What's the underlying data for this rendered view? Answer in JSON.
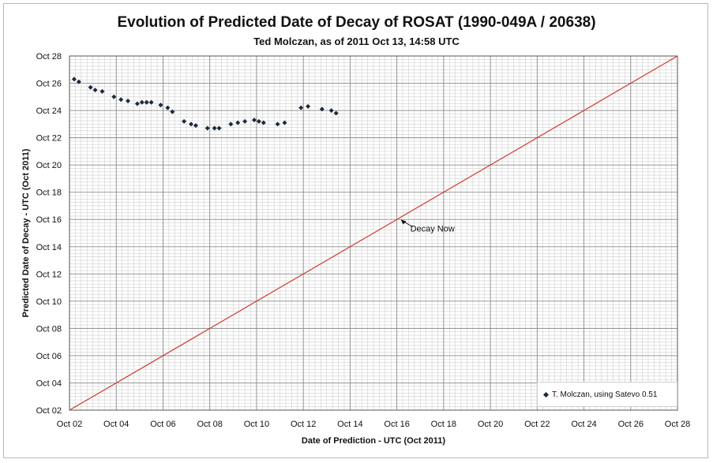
{
  "chart_data": {
    "type": "scatter",
    "title": "Evolution of Predicted Date of Decay of ROSAT (1990-049A / 20638)",
    "subtitle": "Ted Molczan, as of 2011 Oct 13, 14:58 UTC",
    "xlabel": "Date of Prediction - UTC (Oct 2011)",
    "ylabel": "Predicted Date of Decay - UTC (Oct 2011)",
    "xlim": [
      2,
      28
    ],
    "ylim": [
      2,
      28
    ],
    "x_ticks": [
      "Oct 02",
      "Oct 04",
      "Oct 06",
      "Oct 08",
      "Oct 10",
      "Oct 12",
      "Oct 14",
      "Oct 16",
      "Oct 18",
      "Oct 20",
      "Oct 22",
      "Oct 24",
      "Oct 26",
      "Oct 28"
    ],
    "y_ticks": [
      "Oct 02",
      "Oct 04",
      "Oct 06",
      "Oct 08",
      "Oct 10",
      "Oct 12",
      "Oct 14",
      "Oct 16",
      "Oct 18",
      "Oct 20",
      "Oct 22",
      "Oct 24",
      "Oct 26",
      "Oct 28"
    ],
    "grid": true,
    "legend_position": "bottom-right",
    "series": [
      {
        "name": "T. Molczan, using Satevo 0.51",
        "color": "#1c2a3d",
        "marker": "diamond",
        "points": [
          [
            2.2,
            26.3
          ],
          [
            2.4,
            26.1
          ],
          [
            2.9,
            25.7
          ],
          [
            3.1,
            25.5
          ],
          [
            3.4,
            25.4
          ],
          [
            3.9,
            25.0
          ],
          [
            4.2,
            24.8
          ],
          [
            4.5,
            24.7
          ],
          [
            4.9,
            24.5
          ],
          [
            5.1,
            24.6
          ],
          [
            5.3,
            24.6
          ],
          [
            5.5,
            24.6
          ],
          [
            5.9,
            24.4
          ],
          [
            6.2,
            24.2
          ],
          [
            6.4,
            23.9
          ],
          [
            6.9,
            23.2
          ],
          [
            7.2,
            23.0
          ],
          [
            7.4,
            22.9
          ],
          [
            7.9,
            22.7
          ],
          [
            8.2,
            22.7
          ],
          [
            8.4,
            22.7
          ],
          [
            8.9,
            23.0
          ],
          [
            9.2,
            23.1
          ],
          [
            9.5,
            23.2
          ],
          [
            9.9,
            23.3
          ],
          [
            10.1,
            23.2
          ],
          [
            10.3,
            23.1
          ],
          [
            10.9,
            23.0
          ],
          [
            11.2,
            23.1
          ],
          [
            11.9,
            24.2
          ],
          [
            12.2,
            24.3
          ],
          [
            12.8,
            24.1
          ],
          [
            13.2,
            24.0
          ],
          [
            13.4,
            23.8
          ]
        ]
      },
      {
        "name": "Decay Now",
        "color": "#d03b2e",
        "type": "line",
        "points": [
          [
            2,
            2
          ],
          [
            28,
            28
          ]
        ]
      }
    ],
    "annotations": [
      {
        "text": "Decay Now",
        "x": 16.1,
        "y": 16.1
      }
    ]
  }
}
